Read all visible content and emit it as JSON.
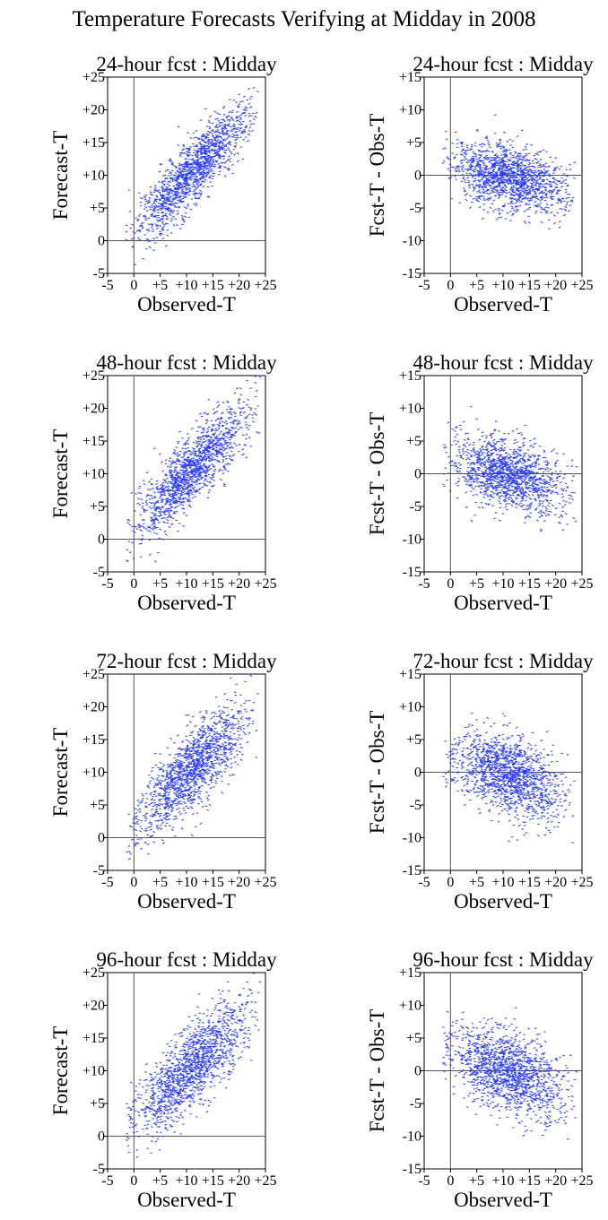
{
  "figure_title": "Temperature Forecasts Verifying at Midday in 2008",
  "colors": {
    "points": "#2b3cff",
    "axis": "#000000",
    "frame": "#000000",
    "zero_line": "#555555"
  },
  "chart_data": [
    {
      "type": "scatter",
      "title": "24-hour fcst : Midday",
      "xlabel": "Observed-T",
      "ylabel": "Forecast-T",
      "xlim": [
        -5,
        25
      ],
      "ylim": [
        -5,
        25
      ],
      "xticks": [
        "-5",
        "0",
        "+5",
        "+10",
        "+15",
        "+20",
        "+25"
      ],
      "yticks": [
        "-5",
        "0",
        "+5",
        "+10",
        "+15",
        "+20",
        "+25"
      ],
      "zero_lines": true,
      "grid": false,
      "n_points": 1400,
      "x_center": 11,
      "x_spread": 5.5,
      "slope": 0.82,
      "intercept": 1.5,
      "residual_spread": 2.4
    },
    {
      "type": "scatter",
      "title": "24-hour fcst : Midday",
      "xlabel": "Observed-T",
      "ylabel": "Fcst-T - Obs-T",
      "xlim": [
        -5,
        25
      ],
      "ylim": [
        -15,
        15
      ],
      "xticks": [
        "-5",
        "0",
        "+5",
        "+10",
        "+15",
        "+20",
        "+25"
      ],
      "yticks": [
        "-15",
        "-10",
        "-5",
        "0",
        "+5",
        "+10",
        "+15"
      ],
      "zero_lines": true,
      "grid": false,
      "n_points": 1400,
      "x_center": 11,
      "x_spread": 5.5,
      "slope": -0.18,
      "intercept": 1.8,
      "residual_spread": 2.4
    },
    {
      "type": "scatter",
      "title": "48-hour fcst : Midday",
      "xlabel": "Observed-T",
      "ylabel": "Forecast-T",
      "xlim": [
        -5,
        25
      ],
      "ylim": [
        -5,
        25
      ],
      "xticks": [
        "-5",
        "0",
        "+5",
        "+10",
        "+15",
        "+20",
        "+25"
      ],
      "yticks": [
        "-5",
        "0",
        "+5",
        "+10",
        "+15",
        "+20",
        "+25"
      ],
      "zero_lines": true,
      "grid": false,
      "n_points": 1400,
      "x_center": 11,
      "x_spread": 5.5,
      "slope": 0.78,
      "intercept": 2.0,
      "residual_spread": 2.7
    },
    {
      "type": "scatter",
      "title": "48-hour fcst : Midday",
      "xlabel": "Observed-T",
      "ylabel": "Fcst-T - Obs-T",
      "xlim": [
        -5,
        25
      ],
      "ylim": [
        -15,
        15
      ],
      "xticks": [
        "-5",
        "0",
        "+5",
        "+10",
        "+15",
        "+20",
        "+25"
      ],
      "yticks": [
        "-15",
        "-10",
        "-5",
        "0",
        "+5",
        "+10",
        "+15"
      ],
      "zero_lines": true,
      "grid": false,
      "n_points": 1400,
      "x_center": 11,
      "x_spread": 5.5,
      "slope": -0.22,
      "intercept": 2.3,
      "residual_spread": 2.7
    },
    {
      "type": "scatter",
      "title": "72-hour fcst : Midday",
      "xlabel": "Observed-T",
      "ylabel": "Forecast-T",
      "xlim": [
        -5,
        25
      ],
      "ylim": [
        -5,
        25
      ],
      "xticks": [
        "-5",
        "0",
        "+5",
        "+10",
        "+15",
        "+20",
        "+25"
      ],
      "yticks": [
        "-5",
        "0",
        "+5",
        "+10",
        "+15",
        "+20",
        "+25"
      ],
      "zero_lines": true,
      "grid": false,
      "n_points": 1400,
      "x_center": 11,
      "x_spread": 5.5,
      "slope": 0.74,
      "intercept": 2.4,
      "residual_spread": 3.0
    },
    {
      "type": "scatter",
      "title": "72-hour fcst : Midday",
      "xlabel": "Observed-T",
      "ylabel": "Fcst-T - Obs-T",
      "xlim": [
        -5,
        25
      ],
      "ylim": [
        -15,
        15
      ],
      "xticks": [
        "-5",
        "0",
        "+5",
        "+10",
        "+15",
        "+20",
        "+25"
      ],
      "yticks": [
        "-15",
        "-10",
        "-5",
        "0",
        "+5",
        "+10",
        "+15"
      ],
      "zero_lines": true,
      "grid": false,
      "n_points": 1400,
      "x_center": 11,
      "x_spread": 5.5,
      "slope": -0.26,
      "intercept": 2.6,
      "residual_spread": 3.0
    },
    {
      "type": "scatter",
      "title": "96-hour fcst : Midday",
      "xlabel": "Observed-T",
      "ylabel": "Forecast-T",
      "xlim": [
        -5,
        25
      ],
      "ylim": [
        -5,
        25
      ],
      "xticks": [
        "-5",
        "0",
        "+5",
        "+10",
        "+15",
        "+20",
        "+25"
      ],
      "yticks": [
        "-5",
        "0",
        "+5",
        "+10",
        "+15",
        "+20",
        "+25"
      ],
      "zero_lines": true,
      "grid": false,
      "n_points": 1400,
      "x_center": 11,
      "x_spread": 5.5,
      "slope": 0.72,
      "intercept": 2.7,
      "residual_spread": 3.1
    },
    {
      "type": "scatter",
      "title": "96-hour fcst : Midday",
      "xlabel": "Observed-T",
      "ylabel": "Fcst-T - Obs-T",
      "xlim": [
        -5,
        25
      ],
      "ylim": [
        -15,
        15
      ],
      "xticks": [
        "-5",
        "0",
        "+5",
        "+10",
        "+15",
        "+20",
        "+25"
      ],
      "yticks": [
        "-15",
        "-10",
        "-5",
        "0",
        "+5",
        "+10",
        "+15"
      ],
      "zero_lines": true,
      "grid": false,
      "n_points": 1400,
      "x_center": 11,
      "x_spread": 5.5,
      "slope": -0.28,
      "intercept": 3.0,
      "residual_spread": 3.1
    }
  ]
}
